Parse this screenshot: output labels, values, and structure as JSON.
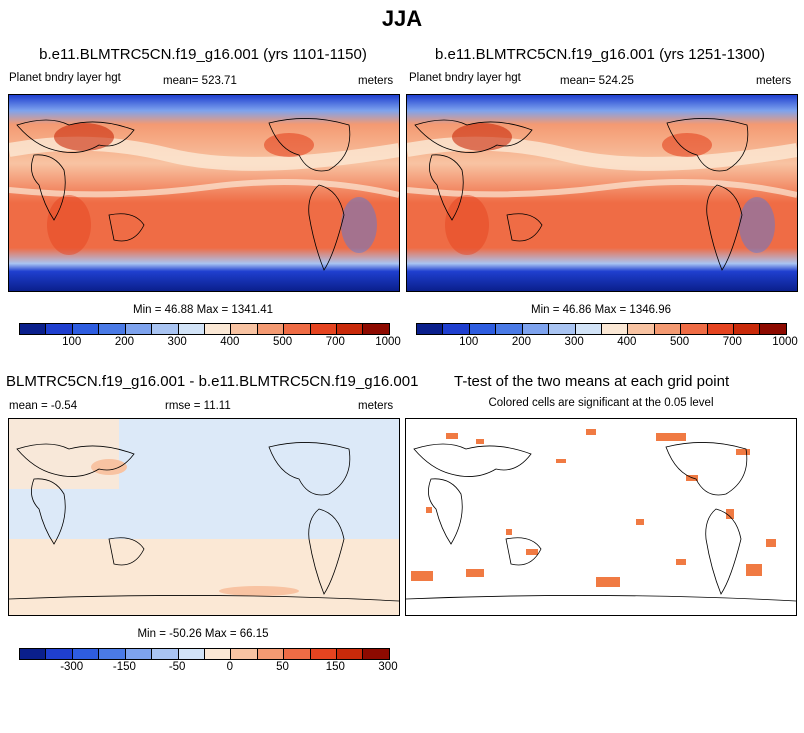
{
  "season": "JJA",
  "panel1": {
    "title": "b.e11.BLMTRC5CN.f19_g16.001 (yrs 1101-1150)",
    "variable": "Planet bndry layer hgt",
    "mean": "mean= 523.71",
    "units": "meters",
    "minmax": "Min = 46.88 Max = 1341.41",
    "ticks": [
      "100",
      "200",
      "300",
      "400",
      "500",
      "700",
      "1000"
    ]
  },
  "panel2": {
    "title": "b.e11.BLMTRC5CN.f19_g16.001 (yrs 1251-1300)",
    "variable": "Planet bndry layer hgt",
    "mean": "mean= 524.25",
    "units": "meters",
    "minmax": "Min = 46.86 Max = 1346.96",
    "ticks": [
      "100",
      "200",
      "300",
      "400",
      "500",
      "700",
      "1000"
    ]
  },
  "panel3": {
    "title": "BLMTRC5CN.f19_g16.001 - b.e11.BLMTRC5CN.f19_g16.001",
    "mean": "mean = -0.54",
    "rmse": "rmse = 11.11",
    "units": "meters",
    "minmax": "Min = -50.26 Max = 66.15",
    "ticks": [
      "-300",
      "-150",
      "-50",
      "0",
      "50",
      "150",
      "300"
    ]
  },
  "panel4": {
    "title": "T-test of the two means at each grid point",
    "subtitle": "Colored cells are significant at the 0.05 level"
  },
  "colors": {
    "scale": [
      "#0a1f8c",
      "#1f3fcf",
      "#2e5de0",
      "#4a7ae6",
      "#7ea3ee",
      "#a9c4f2",
      "#d2e3f7",
      "#fbe8d5",
      "#f8c3a2",
      "#f49a72",
      "#ef6c45",
      "#e54420",
      "#c92a0a",
      "#8d0a00"
    ],
    "significant": "#f07a43"
  }
}
